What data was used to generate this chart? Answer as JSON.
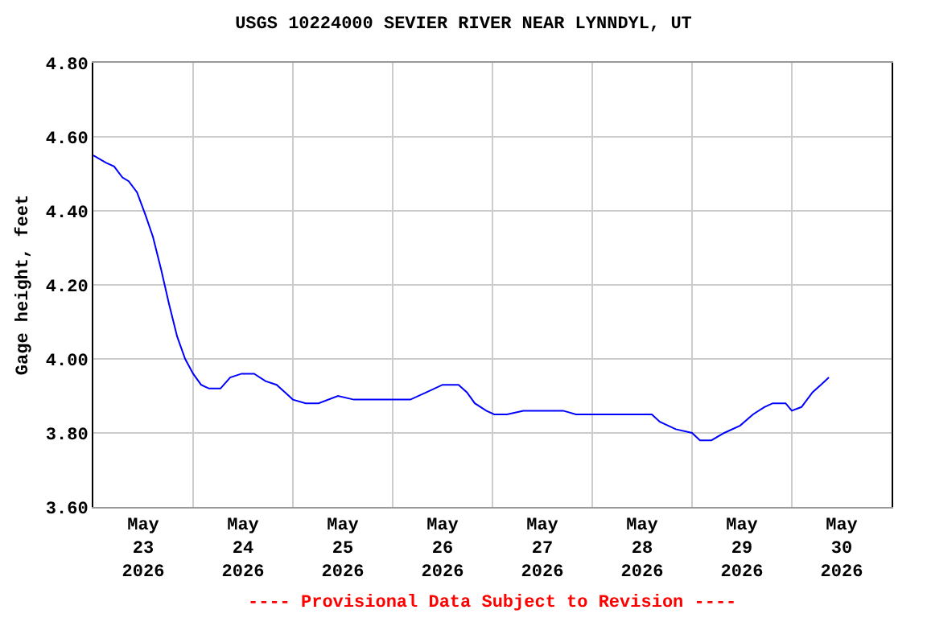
{
  "chart_data": {
    "type": "line",
    "title": "USGS 10224000 SEVIER RIVER NEAR LYNNDYL, UT",
    "ylabel": "Gage height, feet",
    "annotations": [
      "---- Provisional Data Subject to Revision ----"
    ],
    "x": [
      "2026-05-23T00:00",
      "2026-05-23T03:00",
      "2026-05-23T05:00",
      "2026-05-23T07:00",
      "2026-05-23T08:30",
      "2026-05-23T10:30",
      "2026-05-23T12:30",
      "2026-05-23T14:20",
      "2026-05-23T16:20",
      "2026-05-23T18:10",
      "2026-05-23T20:10",
      "2026-05-23T22:05",
      "2026-05-24T00:00",
      "2026-05-24T01:55",
      "2026-05-24T03:50",
      "2026-05-24T06:35",
      "2026-05-24T08:55",
      "2026-05-24T11:40",
      "2026-05-24T14:40",
      "2026-05-24T17:25",
      "2026-05-24T20:05",
      "2026-05-24T22:05",
      "2026-05-25T00:00",
      "2026-05-25T03:05",
      "2026-05-25T06:10",
      "2026-05-25T10:50",
      "2026-05-25T14:40",
      "2026-05-25T18:35",
      "2026-05-26T00:25",
      "2026-05-26T04:15",
      "2026-05-26T08:10",
      "2026-05-26T12:00",
      "2026-05-26T15:50",
      "2026-05-26T17:50",
      "2026-05-26T19:45",
      "2026-05-26T22:30",
      "2026-05-27T00:25",
      "2026-05-27T03:30",
      "2026-05-27T07:25",
      "2026-05-27T13:10",
      "2026-05-27T17:00",
      "2026-05-27T20:05",
      "2026-05-28T00:50",
      "2026-05-28T04:40",
      "2026-05-28T10:30",
      "2026-05-28T14:20",
      "2026-05-28T16:15",
      "2026-05-28T20:05",
      "2026-05-29T00:00",
      "2026-05-29T01:55",
      "2026-05-29T04:40",
      "2026-05-29T07:45",
      "2026-05-29T11:35",
      "2026-05-29T14:40",
      "2026-05-29T17:25",
      "2026-05-29T19:25",
      "2026-05-29T22:30",
      "2026-05-30T00:00",
      "2026-05-30T02:20",
      "2026-05-30T05:00",
      "2026-05-30T07:00",
      "2026-05-30T08:55"
    ],
    "series": [
      {
        "color": "#0000ff",
        "values": [
          4.55,
          4.53,
          4.52,
          4.49,
          4.48,
          4.45,
          4.39,
          4.33,
          4.24,
          4.15,
          4.06,
          4.0,
          3.96,
          3.93,
          3.92,
          3.92,
          3.95,
          3.96,
          3.96,
          3.94,
          3.93,
          3.91,
          3.89,
          3.88,
          3.88,
          3.9,
          3.89,
          3.89,
          3.89,
          3.89,
          3.91,
          3.93,
          3.93,
          3.91,
          3.88,
          3.86,
          3.85,
          3.85,
          3.86,
          3.86,
          3.86,
          3.85,
          3.85,
          3.85,
          3.85,
          3.85,
          3.83,
          3.81,
          3.8,
          3.78,
          3.78,
          3.8,
          3.82,
          3.85,
          3.87,
          3.88,
          3.88,
          3.86,
          3.87,
          3.91,
          3.93,
          3.95
        ]
      }
    ],
    "xlim": [
      "2026-05-23T00:00",
      "2026-05-31T00:00"
    ],
    "xticks": [
      {
        "value": "2026-05-23T12:00",
        "label": "May\n23\n2026"
      },
      {
        "value": "2026-05-24T00:00",
        "label": null
      },
      {
        "value": "2026-05-24T12:00",
        "label": "May\n24\n2026"
      },
      {
        "value": "2026-05-25T00:00",
        "label": null
      },
      {
        "value": "2026-05-25T12:00",
        "label": "May\n25\n2026"
      },
      {
        "value": "2026-05-26T00:00",
        "label": null
      },
      {
        "value": "2026-05-26T12:00",
        "label": "May\n26\n2026"
      },
      {
        "value": "2026-05-27T00:00",
        "label": null
      },
      {
        "value": "2026-05-27T12:00",
        "label": "May\n27\n2026"
      },
      {
        "value": "2026-05-28T00:00",
        "label": null
      },
      {
        "value": "2026-05-28T12:00",
        "label": "May\n28\n2026"
      },
      {
        "value": "2026-05-29T00:00",
        "label": null
      },
      {
        "value": "2026-05-29T12:00",
        "label": "May\n29\n2026"
      },
      {
        "value": "2026-05-30T00:00",
        "label": null
      },
      {
        "value": "2026-05-30T12:00",
        "label": "May\n30\n2026"
      }
    ],
    "ylim": [
      3.6,
      4.8
    ],
    "yticks": [
      {
        "value": 3.6,
        "label": "3.60"
      },
      {
        "value": 3.8,
        "label": "3.80"
      },
      {
        "value": 4.0,
        "label": "4.00"
      },
      {
        "value": 4.2,
        "label": "4.20"
      },
      {
        "value": 4.4,
        "label": "4.40"
      },
      {
        "value": 4.6,
        "label": "4.60"
      },
      {
        "value": 4.8,
        "label": "4.80"
      }
    ],
    "grid": true,
    "marker": "none",
    "line_style": "solid"
  }
}
